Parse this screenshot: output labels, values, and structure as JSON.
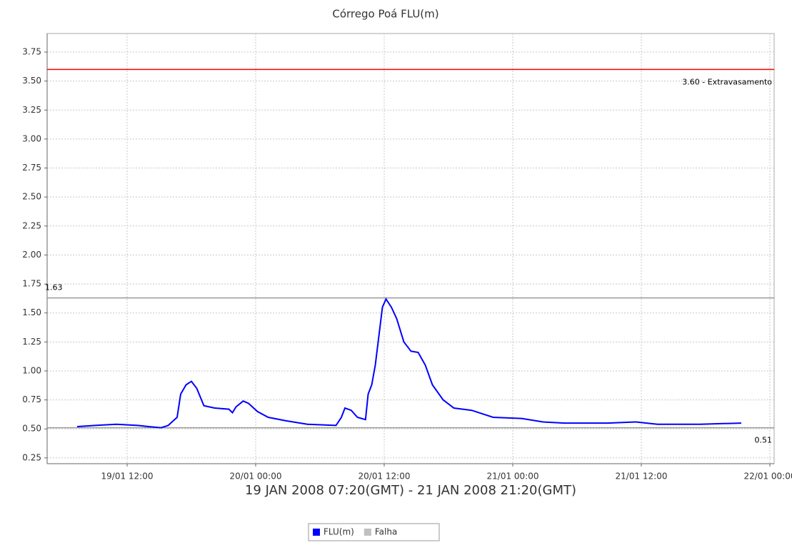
{
  "chart_data": {
    "type": "line",
    "title": "Córrego Poá FLU(m)",
    "xlabel": "19 JAN 2008 07:20(GMT) - 21 JAN 2008 21:20(GMT)",
    "series": [
      {
        "name": "FLU(m)",
        "color": "#0000ff",
        "x": [
          "2008-01-19T07:20",
          "2008-01-19T09:00",
          "2008-01-19T11:00",
          "2008-01-19T13:00",
          "2008-01-19T14:00",
          "2008-01-19T15:10",
          "2008-01-19T15:50",
          "2008-01-19T16:40",
          "2008-01-19T17:00",
          "2008-01-19T17:30",
          "2008-01-19T18:00",
          "2008-01-19T18:30",
          "2008-01-19T19:10",
          "2008-01-19T20:10",
          "2008-01-19T21:30",
          "2008-01-19T21:50",
          "2008-01-19T22:10",
          "2008-01-19T22:50",
          "2008-01-19T23:20",
          "2008-01-20T00:10",
          "2008-01-20T01:10",
          "2008-01-20T02:50",
          "2008-01-20T04:50",
          "2008-01-20T07:30",
          "2008-01-20T08:00",
          "2008-01-20T08:20",
          "2008-01-20T08:55",
          "2008-01-20T09:30",
          "2008-01-20T10:15",
          "2008-01-20T10:30",
          "2008-01-20T10:50",
          "2008-01-20T11:10",
          "2008-01-20T11:30",
          "2008-01-20T11:50",
          "2008-01-20T12:10",
          "2008-01-20T12:40",
          "2008-01-20T13:10",
          "2008-01-20T13:50",
          "2008-01-20T14:30",
          "2008-01-20T15:10",
          "2008-01-20T15:50",
          "2008-01-20T16:30",
          "2008-01-20T17:30",
          "2008-01-20T18:30",
          "2008-01-20T20:10",
          "2008-01-20T22:10",
          "2008-01-21T00:50",
          "2008-01-21T02:50",
          "2008-01-21T04:50",
          "2008-01-21T08:50",
          "2008-01-21T11:30",
          "2008-01-21T13:30",
          "2008-01-21T17:30",
          "2008-01-21T21:20"
        ],
        "values": [
          0.52,
          0.53,
          0.54,
          0.53,
          0.52,
          0.51,
          0.53,
          0.6,
          0.8,
          0.88,
          0.91,
          0.85,
          0.7,
          0.68,
          0.67,
          0.64,
          0.69,
          0.74,
          0.72,
          0.65,
          0.6,
          0.57,
          0.54,
          0.53,
          0.6,
          0.68,
          0.66,
          0.6,
          0.58,
          0.8,
          0.88,
          1.05,
          1.3,
          1.55,
          1.62,
          1.55,
          1.45,
          1.25,
          1.17,
          1.16,
          1.05,
          0.88,
          0.75,
          0.68,
          0.66,
          0.6,
          0.59,
          0.56,
          0.55,
          0.55,
          0.56,
          0.54,
          0.54,
          0.55
        ]
      },
      {
        "name": "Falha",
        "color": "#c0c0c0",
        "x": [],
        "values": []
      }
    ],
    "markers": [
      {
        "value": 3.6,
        "label": "3.60 - Extravasamento",
        "color": "#ff0000",
        "side": "right"
      },
      {
        "value": 1.63,
        "label": "1.63",
        "color": "#999999",
        "side": "left"
      },
      {
        "value": 0.51,
        "label": "0.51",
        "color": "#999999",
        "side": "right"
      }
    ],
    "xlim": [
      "2008-01-19T04:32",
      "2008-01-22T00:24"
    ],
    "xticks": [
      {
        "value": "2008-01-19T12:00",
        "label": "19/01 12:00"
      },
      {
        "value": "2008-01-20T00:00",
        "label": "20/01 00:00"
      },
      {
        "value": "2008-01-20T12:00",
        "label": "20/01 12:00"
      },
      {
        "value": "2008-01-21T00:00",
        "label": "21/01 00:00"
      },
      {
        "value": "2008-01-21T12:00",
        "label": "21/01 12:00"
      },
      {
        "value": "2008-01-22T00:00",
        "label": "22/01 00:00"
      }
    ],
    "ylim": [
      0.2,
      3.91
    ],
    "yticks": [
      0.25,
      {
        "value": 0.5,
        "label": "0.50"
      },
      0.75,
      {
        "value": 1,
        "label": "1.00"
      },
      1.25,
      {
        "value": 1.5,
        "label": "1.50"
      },
      1.75,
      {
        "value": 2,
        "label": "2.00"
      },
      2.25,
      {
        "value": 2.5,
        "label": "2.50"
      },
      2.75,
      {
        "value": 3,
        "label": "3.00"
      },
      3.25,
      {
        "value": 3.5,
        "label": "3.50"
      },
      3.75
    ],
    "grid": true,
    "legend": "bottom"
  }
}
